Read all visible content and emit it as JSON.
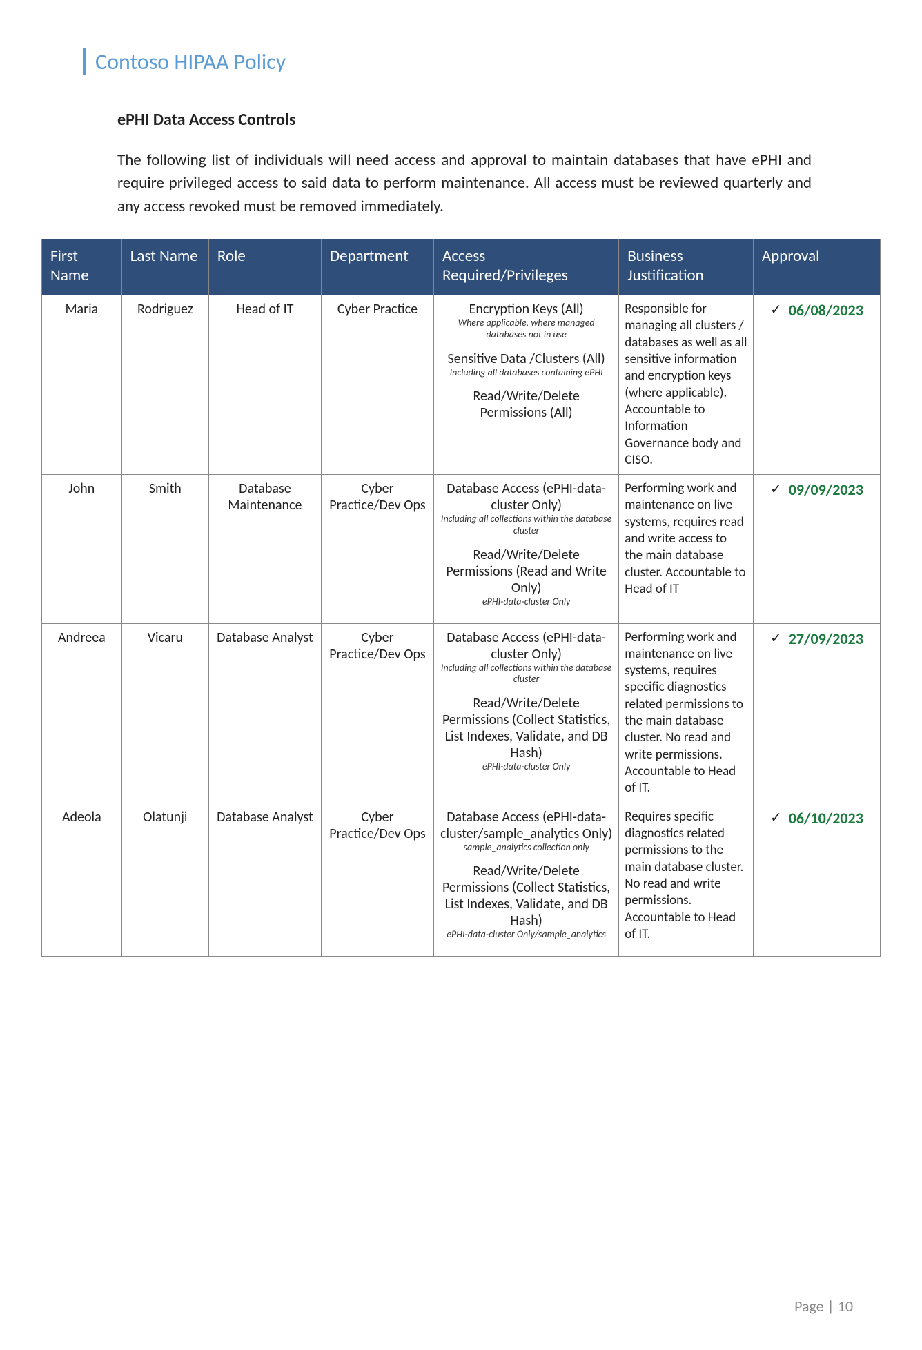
{
  "header": {
    "title": "Contoso HIPAA Policy"
  },
  "section": {
    "title": "ePHI Data Access Controls",
    "intro": "The following list of individuals will need access and approval to maintain databases that have ePHI and require privileged access to said data to perform maintenance. All access must be reviewed quarterly and any access revoked must be removed immediately."
  },
  "columns": {
    "first": "First Name",
    "last": "Last Name",
    "role": "Role",
    "dept": "Department",
    "access": "Access Required/Privileges",
    "justification": "Business Justification",
    "approval": "Approval"
  },
  "rows": [
    {
      "first": "Maria",
      "last": "Rodriguez",
      "role": "Head of IT",
      "dept": "Cyber Practice",
      "access": [
        {
          "main": "Encryption Keys (All)",
          "note": "Where applicable, where managed databases not in use"
        },
        {
          "main": "Sensitive Data /Clusters (All)",
          "note": "Including all databases containing ePHI"
        },
        {
          "main": "Read/Write/Delete Permissions (All)",
          "note": ""
        }
      ],
      "justification": "Responsible for managing all clusters / databases as well as all sensitive information and encryption keys (where applicable). Accountable to Information Governance body and CISO.",
      "approval_check": "✓",
      "approval_date": "06/08/2023"
    },
    {
      "first": "John",
      "last": "Smith",
      "role": "Database Maintenance",
      "dept": "Cyber Practice/Dev Ops",
      "access": [
        {
          "main": "Database Access (ePHI-data-cluster Only)",
          "note": "Including all collections within the database cluster"
        },
        {
          "main": "Read/Write/Delete Permissions (Read and Write Only)",
          "note": "ePHI-data-cluster Only"
        }
      ],
      "justification": "Performing work and maintenance on live systems, requires read and write access to the main database cluster. Accountable to Head of IT",
      "approval_check": "✓",
      "approval_date": "09/09/2023"
    },
    {
      "first": "Andreea",
      "last": "Vicaru",
      "role": "Database Analyst",
      "dept": "Cyber Practice/Dev Ops",
      "access": [
        {
          "main": "Database Access (ePHI-data-cluster Only)",
          "note": "Including all collections within the database cluster"
        },
        {
          "main": "Read/Write/Delete Permissions (Collect Statistics, List Indexes, Validate, and DB Hash)",
          "note": "ePHI-data-cluster Only"
        }
      ],
      "justification": "Performing work and maintenance on live systems, requires specific diagnostics related permissions to the main database cluster. No read and write permissions. Accountable to Head of IT.",
      "approval_check": "✓",
      "approval_date": "27/09/2023"
    },
    {
      "first": "Adeola",
      "last": "Olatunji",
      "role": "Database Analyst",
      "dept": "Cyber Practice/Dev Ops",
      "access": [
        {
          "main": "Database Access (ePHI-data-cluster/sample_analytics Only)",
          "note": "sample_analytics collection only"
        },
        {
          "main": "Read/Write/Delete Permissions (Collect Statistics, List Indexes, Validate, and DB Hash)",
          "note": "ePHI-data-cluster Only/sample_analytics"
        }
      ],
      "justification": "Requires specific diagnostics related permissions to the main database cluster. No read and write permissions. Accountable to Head of IT.",
      "approval_check": "✓",
      "approval_date": "06/10/2023"
    }
  ],
  "footer": {
    "label": "Page | 10"
  },
  "style": {
    "header_accent": "#5b9bd5",
    "table_header_bg": "#2f4e7a",
    "approval_color": "#1a7a3e",
    "border_color": "#888888",
    "page_bg": "#ffffff"
  }
}
